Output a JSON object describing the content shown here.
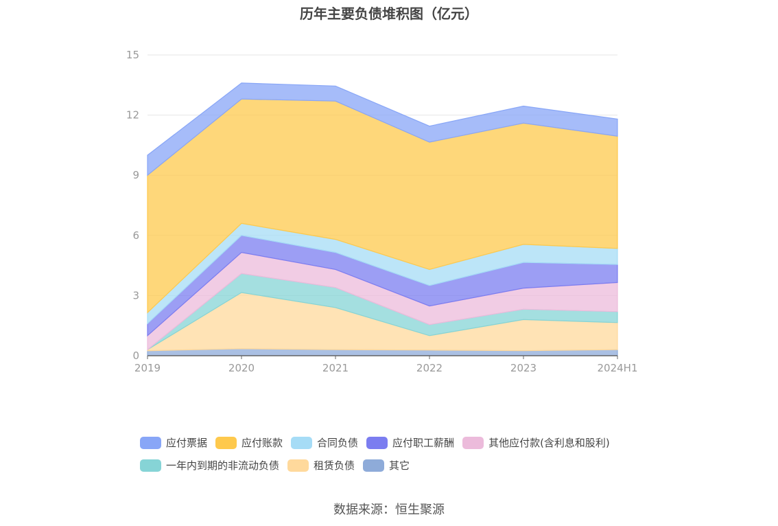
{
  "source_text": "数据来源：恒生聚源",
  "chart_data": {
    "type": "area",
    "stacked": true,
    "title": "历年主要负债堆积图（亿元）",
    "categories": [
      "2019",
      "2020",
      "2021",
      "2022",
      "2023",
      "2024H1"
    ],
    "ylim": [
      0,
      15
    ],
    "yticks": [
      "0",
      "3",
      "6",
      "9",
      "12",
      "15"
    ],
    "grid": true,
    "legend_position": "bottom",
    "series": [
      {
        "name": "其它",
        "color": "#8eabd9",
        "values": [
          0.25,
          0.35,
          0.3,
          0.28,
          0.25,
          0.3
        ]
      },
      {
        "name": "租赁负债",
        "color": "#ffd99c",
        "values": [
          0.05,
          2.8,
          2.1,
          0.72,
          1.55,
          1.35
        ]
      },
      {
        "name": "一年内到期的非流动负债",
        "color": "#86d4d6",
        "values": [
          0.0,
          0.95,
          1.0,
          0.55,
          0.52,
          0.55
        ]
      },
      {
        "name": "其他应付款(含利息和股利)",
        "color": "#ecbbdb",
        "values": [
          0.7,
          1.05,
          0.9,
          0.93,
          1.05,
          1.45
        ]
      },
      {
        "name": "应付职工薪酬",
        "color": "#7b7df0",
        "values": [
          0.6,
          0.85,
          0.85,
          1.02,
          1.28,
          0.9
        ]
      },
      {
        "name": "合同负债",
        "color": "#a6dcf6",
        "values": [
          0.55,
          0.6,
          0.65,
          0.8,
          0.9,
          0.8
        ]
      },
      {
        "name": "应付账款",
        "color": "#fec94d",
        "values": [
          6.85,
          6.2,
          6.9,
          6.35,
          6.05,
          5.6
        ]
      },
      {
        "name": "应付票据",
        "color": "#88a6f7",
        "values": [
          1.0,
          0.8,
          0.75,
          0.8,
          0.85,
          0.85
        ]
      }
    ],
    "legend_order": [
      [
        "应付票据",
        "应付账款",
        "合同负债",
        "应付职工薪酬",
        "其他应付款(含利息和股利)"
      ],
      [
        "一年内到期的非流动负债",
        "租赁负债",
        "其它"
      ]
    ]
  }
}
